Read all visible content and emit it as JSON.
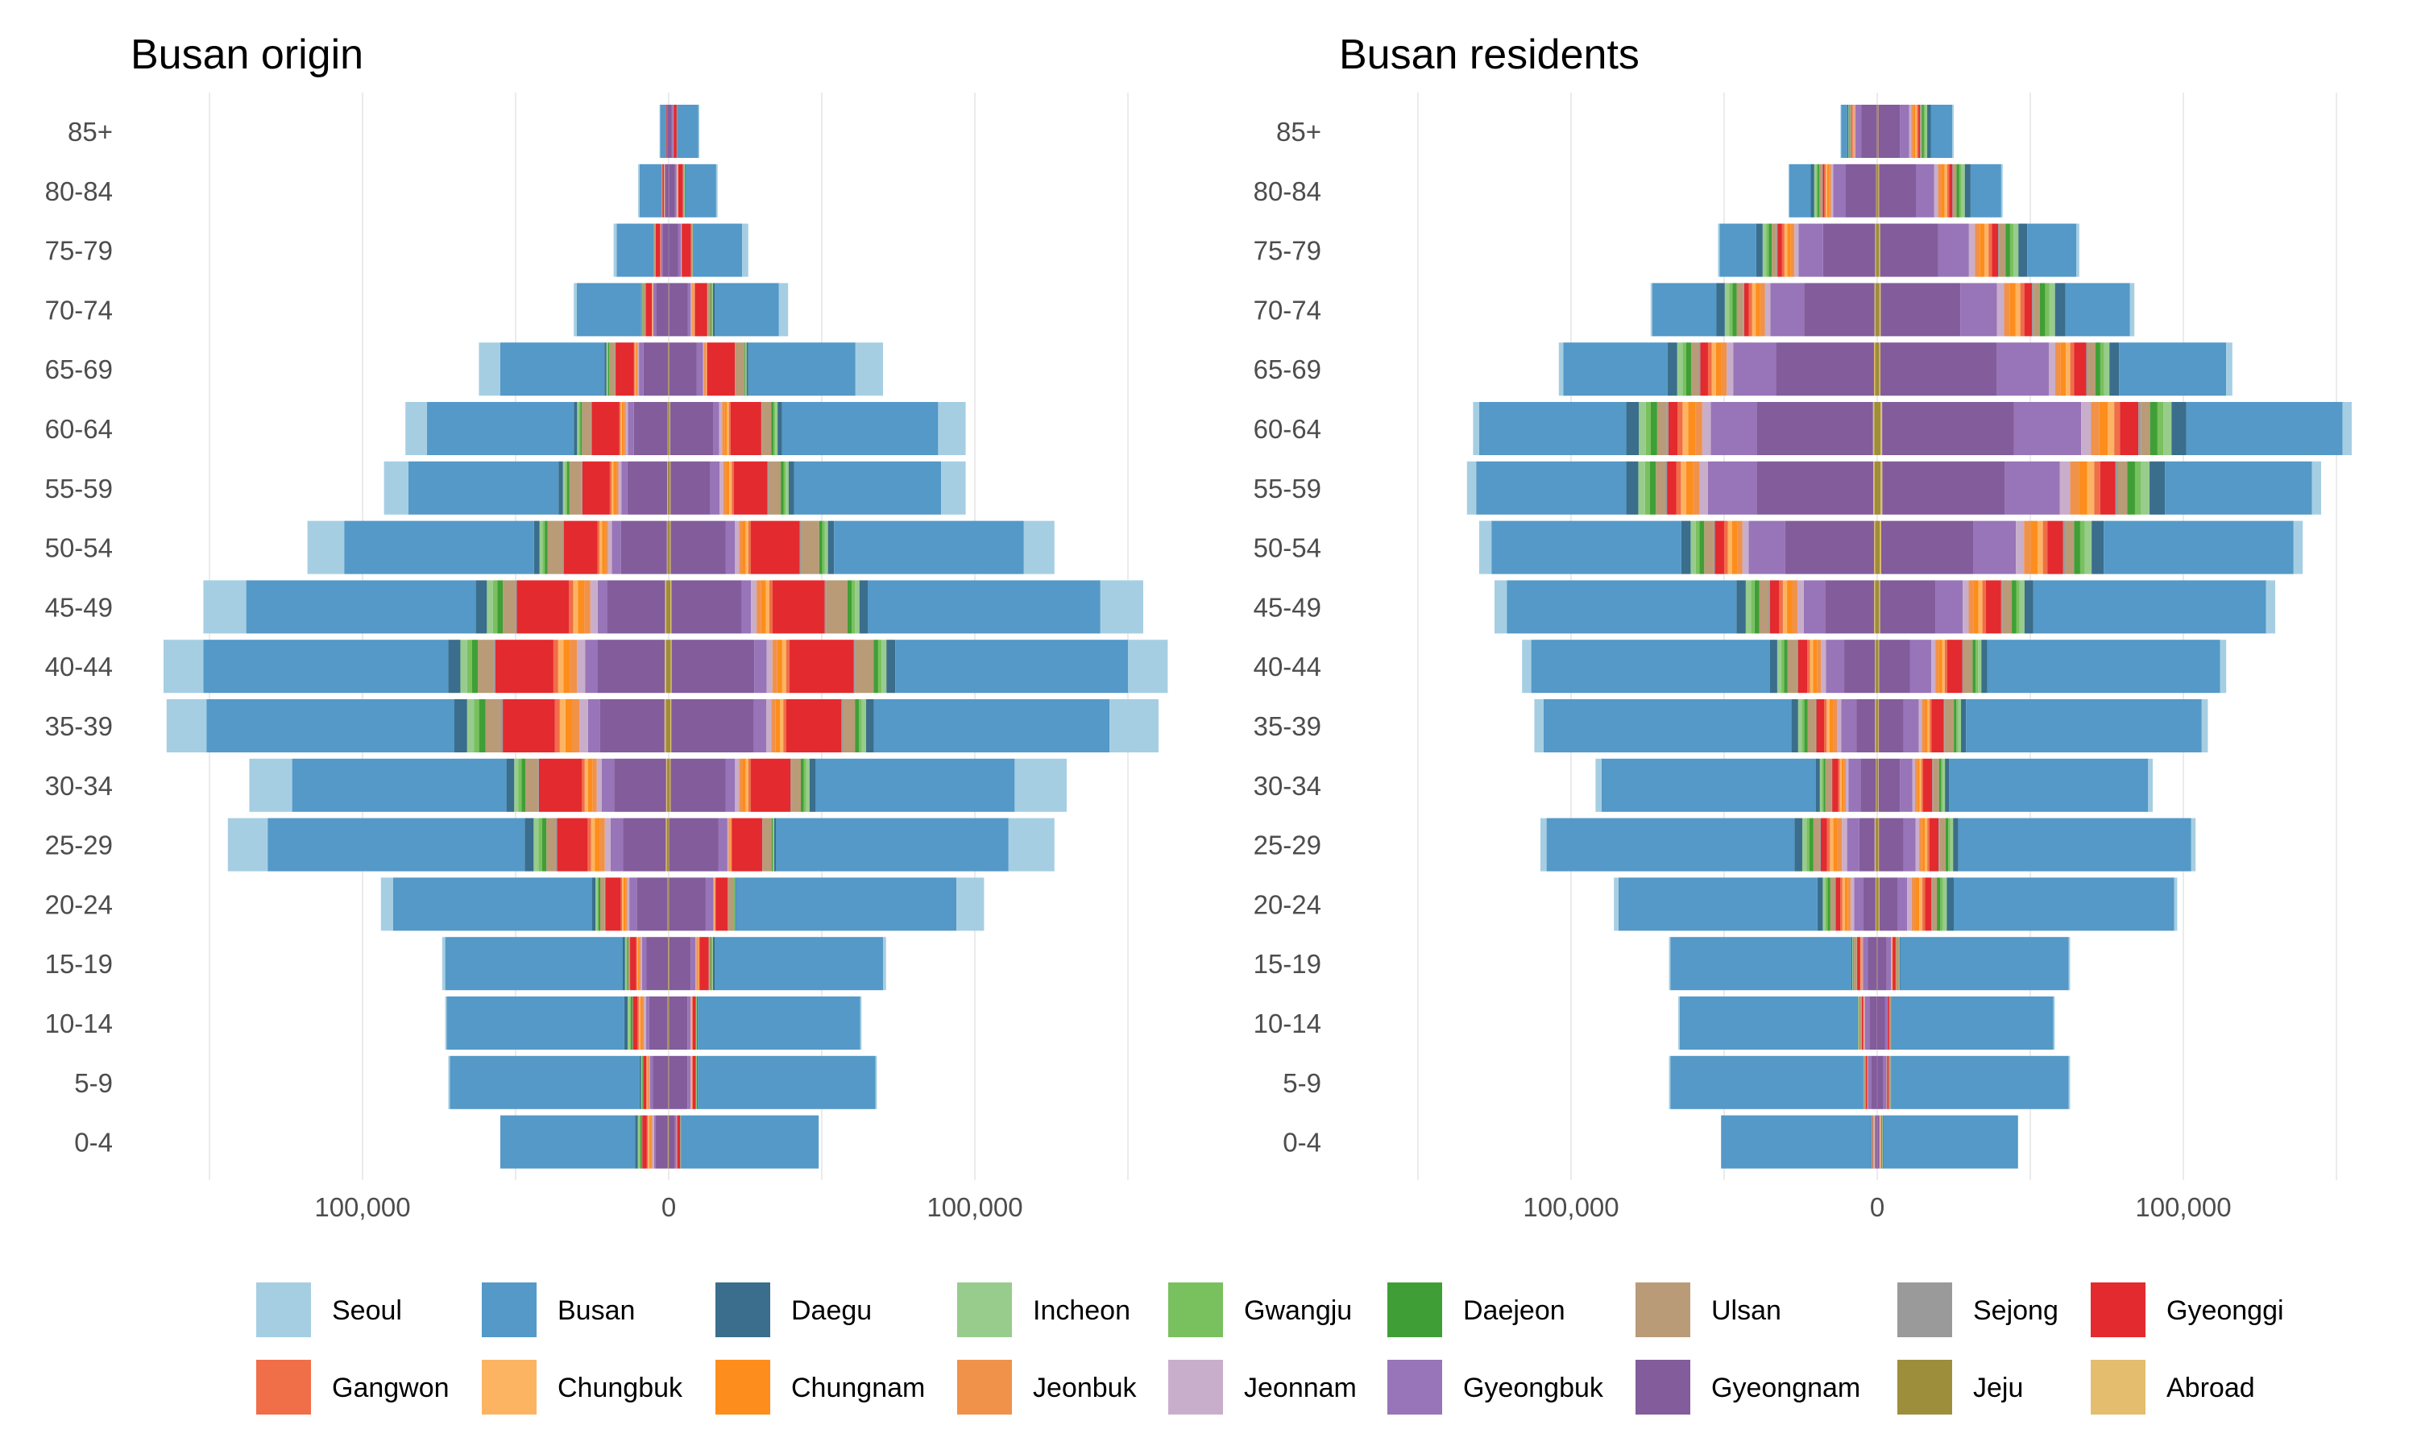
{
  "chart_data": {
    "type": "bar",
    "subtype": "population-pyramid-stacked",
    "age_groups": [
      "0-4",
      "5-9",
      "10-14",
      "15-19",
      "20-24",
      "25-29",
      "30-34",
      "35-39",
      "40-44",
      "45-49",
      "50-54",
      "55-59",
      "60-64",
      "65-69",
      "70-74",
      "75-79",
      "80-84",
      "85+"
    ],
    "categories": [
      "Seoul",
      "Busan",
      "Daegu",
      "Incheon",
      "Gwangju",
      "Daejeon",
      "Ulsan",
      "Sejong",
      "Gyeonggi",
      "Gangwon",
      "Chungbuk",
      "Chungnam",
      "Jeonbuk",
      "Jeonnam",
      "Gyeongbuk",
      "Gyeongnam",
      "Jeju",
      "Abroad"
    ],
    "colors": {
      "Seoul": "#a6cee3",
      "Busan": "#5499c7",
      "Daegu": "#3a6e8c",
      "Incheon": "#98cc8d",
      "Gwangju": "#79c05e",
      "Daejeon": "#3f9f36",
      "Ulsan": "#b99b78",
      "Sejong": "#9a9a9a",
      "Gyeonggi": "#e32a2e",
      "Gangwon": "#f06e48",
      "Chungbuk": "#fdb462",
      "Chungnam": "#fd8d1c",
      "Jeonbuk": "#f0924a",
      "Jeonnam": "#c9aecb",
      "Gyeongbuk": "#9874b8",
      "Gyeongnam": "#835c9b",
      "Jeju": "#9d8e3c",
      "Abroad": "#e4bd6e"
    },
    "x_axis": {
      "ticks": [
        -100000,
        0,
        100000
      ],
      "tick_labels": [
        "100,000",
        "0",
        "100,000"
      ],
      "range": [
        -165000,
        165000
      ],
      "minor_gridlines": [
        -150000,
        -50000,
        50000,
        150000
      ]
    },
    "panels": [
      {
        "title": "Busan origin",
        "left_totals": [
          55000,
          72000,
          73000,
          74000,
          94000,
          144000,
          137000,
          164000,
          165000,
          152000,
          118000,
          93000,
          86000,
          62000,
          31000,
          18000,
          10000,
          3000
        ],
        "right_totals": [
          49000,
          68000,
          63000,
          71000,
          103000,
          126000,
          130000,
          160000,
          163000,
          155000,
          126000,
          97000,
          97000,
          70000,
          39000,
          26000,
          16000,
          10000
        ],
        "left": {
          "Busan": [
            44000,
            62000,
            58000,
            58000,
            65000,
            84000,
            70000,
            81000,
            80000,
            75000,
            62000,
            49000,
            48000,
            34000,
            21000,
            12000,
            7000,
            2000
          ],
          "Gyeongnam": [
            4000,
            5000,
            6000,
            7000,
            10000,
            14000,
            17000,
            21000,
            22000,
            19000,
            15000,
            13000,
            11000,
            8000,
            4000,
            2000,
            1000,
            500
          ],
          "Gyeongbuk": [
            500,
            1000,
            1000,
            1500,
            2500,
            4000,
            4000,
            4000,
            4000,
            3000,
            3000,
            2000,
            2000,
            1500,
            1000,
            500,
            300,
            100
          ],
          "Gyeonggi": [
            1500,
            1000,
            1500,
            2000,
            5000,
            10000,
            14000,
            17000,
            19000,
            17000,
            11000,
            9000,
            9000,
            6000,
            2000,
            1500,
            500,
            200
          ],
          "Ulsan": [
            0,
            0,
            0,
            500,
            1500,
            3000,
            4000,
            5000,
            5000,
            4000,
            5000,
            4000,
            3000,
            2000,
            1000,
            500,
            200,
            0
          ],
          "Seoul": [
            0,
            500,
            500,
            1000,
            4000,
            13000,
            14000,
            13000,
            13000,
            14000,
            12000,
            8000,
            7000,
            7000,
            1000,
            1000,
            500,
            200
          ]
        },
        "right": {
          "Busan": [
            45000,
            58000,
            53000,
            55000,
            72000,
            76000,
            65000,
            77000,
            76000,
            76000,
            62000,
            48000,
            51000,
            35000,
            21000,
            16000,
            10000,
            7000
          ],
          "Gyeongnam": [
            2000,
            6000,
            6000,
            7000,
            12000,
            16000,
            18000,
            27000,
            27000,
            23000,
            18000,
            13000,
            14000,
            9000,
            6000,
            3000,
            2000,
            1000
          ],
          "Gyeongbuk": [
            500,
            1000,
            1000,
            1500,
            2500,
            3000,
            3000,
            4000,
            4000,
            3000,
            3000,
            3000,
            2000,
            2000,
            1000,
            1000,
            500,
            500
          ],
          "Gyeonggi": [
            1000,
            1000,
            1000,
            3000,
            4000,
            10000,
            13000,
            18000,
            21000,
            17000,
            16000,
            11000,
            10000,
            9000,
            4000,
            3000,
            1500,
            1000
          ],
          "Ulsan": [
            0,
            0,
            0,
            500,
            2000,
            3000,
            3000,
            4000,
            6000,
            7000,
            6000,
            4000,
            3000,
            3000,
            1000,
            500,
            300,
            0
          ],
          "Seoul": [
            0,
            500,
            500,
            1000,
            9000,
            15000,
            17000,
            16000,
            13000,
            14000,
            10000,
            8000,
            9000,
            9000,
            3000,
            2000,
            500,
            300
          ]
        }
      },
      {
        "title": "Busan residents",
        "left_totals": [
          51000,
          68000,
          65000,
          68000,
          86000,
          110000,
          92000,
          112000,
          116000,
          125000,
          130000,
          134000,
          132000,
          104000,
          74000,
          52000,
          29000,
          12000
        ],
        "right_totals": [
          46000,
          63000,
          58000,
          63000,
          98000,
          104000,
          90000,
          108000,
          114000,
          130000,
          139000,
          145000,
          155000,
          116000,
          84000,
          66000,
          41000,
          25000
        ],
        "left": {
          "Busan": [
            49000,
            63000,
            58000,
            59000,
            65000,
            81000,
            70000,
            81000,
            78000,
            75000,
            62000,
            49000,
            48000,
            34000,
            21000,
            12000,
            7000,
            2000
          ],
          "Gyeongnam": [
            500,
            2000,
            2500,
            3000,
            4000,
            5000,
            5000,
            6000,
            10000,
            16000,
            29000,
            38000,
            38000,
            32000,
            23000,
            17000,
            10000,
            5000
          ],
          "Gyeongbuk": [
            300,
            1000,
            1500,
            1500,
            3000,
            4000,
            4000,
            5000,
            6000,
            7000,
            12000,
            16000,
            15000,
            14000,
            11000,
            8000,
            4000,
            2000
          ],
          "Gyeonggi": [
            200,
            500,
            500,
            1000,
            1500,
            2000,
            2000,
            2500,
            3000,
            3000,
            3000,
            3000,
            3000,
            2500,
            1500,
            1500,
            500,
            200
          ],
          "Ulsan": [
            0,
            500,
            1000,
            1000,
            1500,
            2000,
            2000,
            2500,
            3000,
            3000,
            3000,
            3000,
            3000,
            2500,
            2000,
            1500,
            1000,
            500
          ],
          "Seoul": [
            0,
            500,
            500,
            500,
            1500,
            2000,
            2000,
            3000,
            3000,
            4000,
            4000,
            3000,
            2000,
            1500,
            500,
            500,
            300,
            200
          ]
        },
        "right": {
          "Busan": [
            44000,
            58000,
            53000,
            55000,
            72000,
            76000,
            65000,
            77000,
            76000,
            76000,
            62000,
            48000,
            51000,
            35000,
            21000,
            16000,
            10000,
            7000
          ],
          "Gyeongnam": [
            500,
            2000,
            2500,
            3000,
            6000,
            8000,
            7000,
            8000,
            10000,
            18000,
            30000,
            40000,
            43000,
            38000,
            26000,
            19000,
            12000,
            7000
          ],
          "Gyeongbuk": [
            300,
            1000,
            1000,
            1500,
            3000,
            4000,
            4000,
            5000,
            7000,
            9000,
            14000,
            18000,
            22000,
            17000,
            12000,
            10000,
            6000,
            3000
          ],
          "Gyeonggi": [
            200,
            500,
            500,
            1000,
            2000,
            3000,
            3000,
            4000,
            5000,
            5000,
            5000,
            5000,
            6000,
            4000,
            2500,
            2000,
            1000,
            500
          ],
          "Ulsan": [
            0,
            500,
            500,
            1000,
            1500,
            2000,
            2000,
            3000,
            3000,
            3000,
            3000,
            3000,
            3000,
            2500,
            2000,
            2000,
            1000,
            500
          ],
          "Seoul": [
            0,
            500,
            500,
            500,
            1000,
            1500,
            1500,
            2000,
            2000,
            3000,
            3000,
            3000,
            3000,
            2000,
            1500,
            1000,
            500,
            500
          ]
        }
      }
    ],
    "legend": {
      "position": "bottom",
      "rows": [
        [
          "Seoul",
          "Busan",
          "Daegu",
          "Incheon",
          "Gwangju",
          "Daejeon",
          "Ulsan",
          "Sejong",
          "Gyeonggi"
        ],
        [
          "Gangwon",
          "Chungbuk",
          "Chungnam",
          "Jeonbuk",
          "Jeonnam",
          "Gyeongbuk",
          "Gyeongnam",
          "Jeju",
          "Abroad"
        ]
      ]
    }
  }
}
